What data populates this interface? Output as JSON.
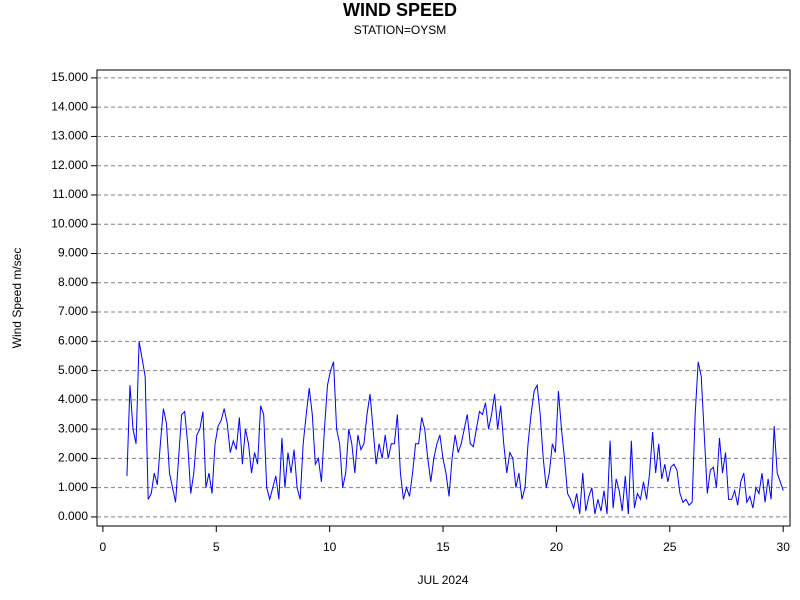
{
  "chart_data": {
    "type": "line",
    "title": "WIND SPEED",
    "subtitle": "STATION=OYSM",
    "x_label": "JUL 2024",
    "y_label": "Wind Speed m/sec",
    "xlim": [
      -0.26,
      30.3
    ],
    "ylim": [
      -0.31,
      15.27
    ],
    "xticks": [
      0,
      5,
      10,
      15,
      20,
      25,
      30
    ],
    "yticks": [
      {
        "value": 0,
        "label": "0.000"
      },
      {
        "value": 1,
        "label": "1.000"
      },
      {
        "value": 2,
        "label": "2.000"
      },
      {
        "value": 3,
        "label": "3.000"
      },
      {
        "value": 4,
        "label": "4.000"
      },
      {
        "value": 5,
        "label": "5.000"
      },
      {
        "value": 6,
        "label": "6.000"
      },
      {
        "value": 7,
        "label": "7.000"
      },
      {
        "value": 8,
        "label": "8.000"
      },
      {
        "value": 9,
        "label": "9.000"
      },
      {
        "value": 10,
        "label": "10.000"
      },
      {
        "value": 11,
        "label": "11.000"
      },
      {
        "value": 12,
        "label": "12.000"
      },
      {
        "value": 13,
        "label": "13.000"
      },
      {
        "value": 14,
        "label": "14.000"
      },
      {
        "value": 15,
        "label": "15.000"
      }
    ],
    "grid": true,
    "color": "#0000ff",
    "x": [
      1.06,
      1.194,
      1.328,
      1.462,
      1.596,
      1.73,
      1.864,
      1.998,
      2.132,
      2.266,
      2.4,
      2.534,
      2.668,
      2.802,
      2.936,
      3.07,
      3.204,
      3.338,
      3.472,
      3.606,
      3.74,
      3.874,
      4.008,
      4.142,
      4.276,
      4.41,
      4.544,
      4.678,
      4.812,
      4.946,
      5.08,
      5.214,
      5.348,
      5.482,
      5.616,
      5.75,
      5.884,
      6.018,
      6.152,
      6.286,
      6.42,
      6.554,
      6.688,
      6.822,
      6.956,
      7.09,
      7.224,
      7.358,
      7.492,
      7.626,
      7.76,
      7.894,
      8.028,
      8.162,
      8.296,
      8.43,
      8.564,
      8.698,
      8.832,
      8.966,
      9.1,
      9.234,
      9.368,
      9.502,
      9.636,
      9.77,
      9.904,
      10.038,
      10.172,
      10.306,
      10.44,
      10.574,
      10.708,
      10.842,
      10.976,
      11.11,
      11.244,
      11.378,
      11.512,
      11.646,
      11.78,
      11.914,
      12.048,
      12.182,
      12.316,
      12.45,
      12.584,
      12.718,
      12.852,
      12.986,
      13.12,
      13.254,
      13.388,
      13.522,
      13.656,
      13.79,
      13.924,
      14.058,
      14.192,
      14.326,
      14.46,
      14.594,
      14.728,
      14.862,
      14.996,
      15.13,
      15.264,
      15.398,
      15.532,
      15.666,
      15.8,
      15.934,
      16.068,
      16.202,
      16.336,
      16.47,
      16.604,
      16.738,
      16.872,
      17.006,
      17.14,
      17.274,
      17.408,
      17.542,
      17.676,
      17.81,
      17.944,
      18.078,
      18.212,
      18.346,
      18.48,
      18.614,
      18.748,
      18.882,
      19.016,
      19.15,
      19.284,
      19.418,
      19.552,
      19.686,
      19.82,
      19.954,
      20.088,
      20.222,
      20.356,
      20.49,
      20.624,
      20.758,
      20.892,
      21.026,
      21.16,
      21.294,
      21.428,
      21.562,
      21.696,
      21.83,
      21.964,
      22.098,
      22.232,
      22.366,
      22.5,
      22.634,
      22.768,
      22.902,
      23.036,
      23.17,
      23.304,
      23.438,
      23.572,
      23.706,
      23.84,
      23.974,
      24.108,
      24.242,
      24.376,
      24.51,
      24.644,
      24.778,
      24.912,
      25.046,
      25.18,
      25.314,
      25.448,
      25.582,
      25.716,
      25.85,
      25.984,
      26.118,
      26.252,
      26.386,
      26.52,
      26.654,
      26.788,
      26.922,
      27.056,
      27.19,
      27.324,
      27.458,
      27.592,
      27.726,
      27.86,
      27.994,
      28.128,
      28.262,
      28.396,
      28.53,
      28.664,
      28.798,
      28.932,
      29.066,
      29.2,
      29.334,
      29.468,
      29.602,
      29.736,
      29.87,
      30.004
    ],
    "values": [
      1.4,
      4.5,
      3.0,
      2.5,
      6.0,
      5.4,
      4.8,
      0.6,
      0.8,
      1.5,
      1.1,
      2.5,
      3.7,
      3.2,
      1.5,
      1.0,
      0.5,
      2.0,
      3.5,
      3.6,
      2.5,
      0.8,
      1.5,
      2.8,
      3.0,
      3.6,
      1.0,
      1.5,
      0.8,
      2.5,
      3.1,
      3.3,
      3.7,
      3.2,
      2.2,
      2.6,
      2.3,
      3.4,
      1.8,
      3.0,
      2.5,
      1.5,
      2.2,
      1.8,
      3.8,
      3.5,
      1.0,
      0.6,
      1.0,
      1.4,
      0.6,
      2.7,
      1.0,
      2.2,
      1.5,
      2.3,
      1.0,
      0.6,
      2.5,
      3.5,
      4.4,
      3.5,
      1.8,
      2.0,
      1.2,
      3.0,
      4.5,
      5.0,
      5.3,
      3.0,
      2.5,
      1.0,
      1.5,
      3.0,
      2.5,
      1.5,
      2.8,
      2.3,
      2.5,
      3.5,
      4.2,
      3.0,
      1.8,
      2.5,
      2.0,
      2.8,
      2.0,
      2.5,
      2.5,
      3.5,
      1.5,
      0.6,
      1.0,
      0.7,
      1.5,
      2.5,
      2.5,
      3.4,
      3.0,
      2.0,
      1.2,
      2.0,
      2.5,
      2.8,
      2.0,
      1.5,
      0.7,
      2.0,
      2.8,
      2.2,
      2.5,
      3.0,
      3.5,
      2.5,
      2.4,
      3.0,
      3.6,
      3.5,
      3.9,
      3.0,
      3.5,
      4.2,
      3.0,
      3.8,
      2.5,
      1.5,
      2.2,
      2.0,
      1.0,
      1.5,
      0.6,
      1.0,
      2.5,
      3.5,
      4.3,
      4.5,
      3.5,
      2.0,
      1.0,
      1.5,
      2.5,
      2.2,
      4.3,
      3.0,
      2.0,
      0.8,
      0.6,
      0.3,
      0.8,
      0.1,
      1.5,
      0.2,
      0.7,
      1.0,
      0.1,
      0.6,
      0.2,
      0.9,
      0.1,
      2.6,
      0.3,
      1.3,
      0.9,
      0.2,
      1.4,
      0.1,
      2.6,
      0.3,
      0.8,
      0.6,
      1.2,
      0.6,
      1.5,
      2.9,
      1.5,
      2.5,
      1.3,
      1.8,
      1.2,
      1.7,
      1.8,
      1.6,
      0.8,
      0.5,
      0.6,
      0.4,
      0.5,
      3.5,
      5.3,
      4.8,
      2.8,
      0.8,
      1.6,
      1.7,
      1.0,
      2.7,
      1.5,
      2.2,
      0.6,
      0.6,
      0.9,
      0.4,
      1.2,
      1.5,
      0.5,
      0.7,
      0.3,
      1.0,
      0.8,
      1.5,
      0.5,
      1.3,
      0.6,
      3.1,
      1.5,
      1.2,
      0.9
    ]
  }
}
